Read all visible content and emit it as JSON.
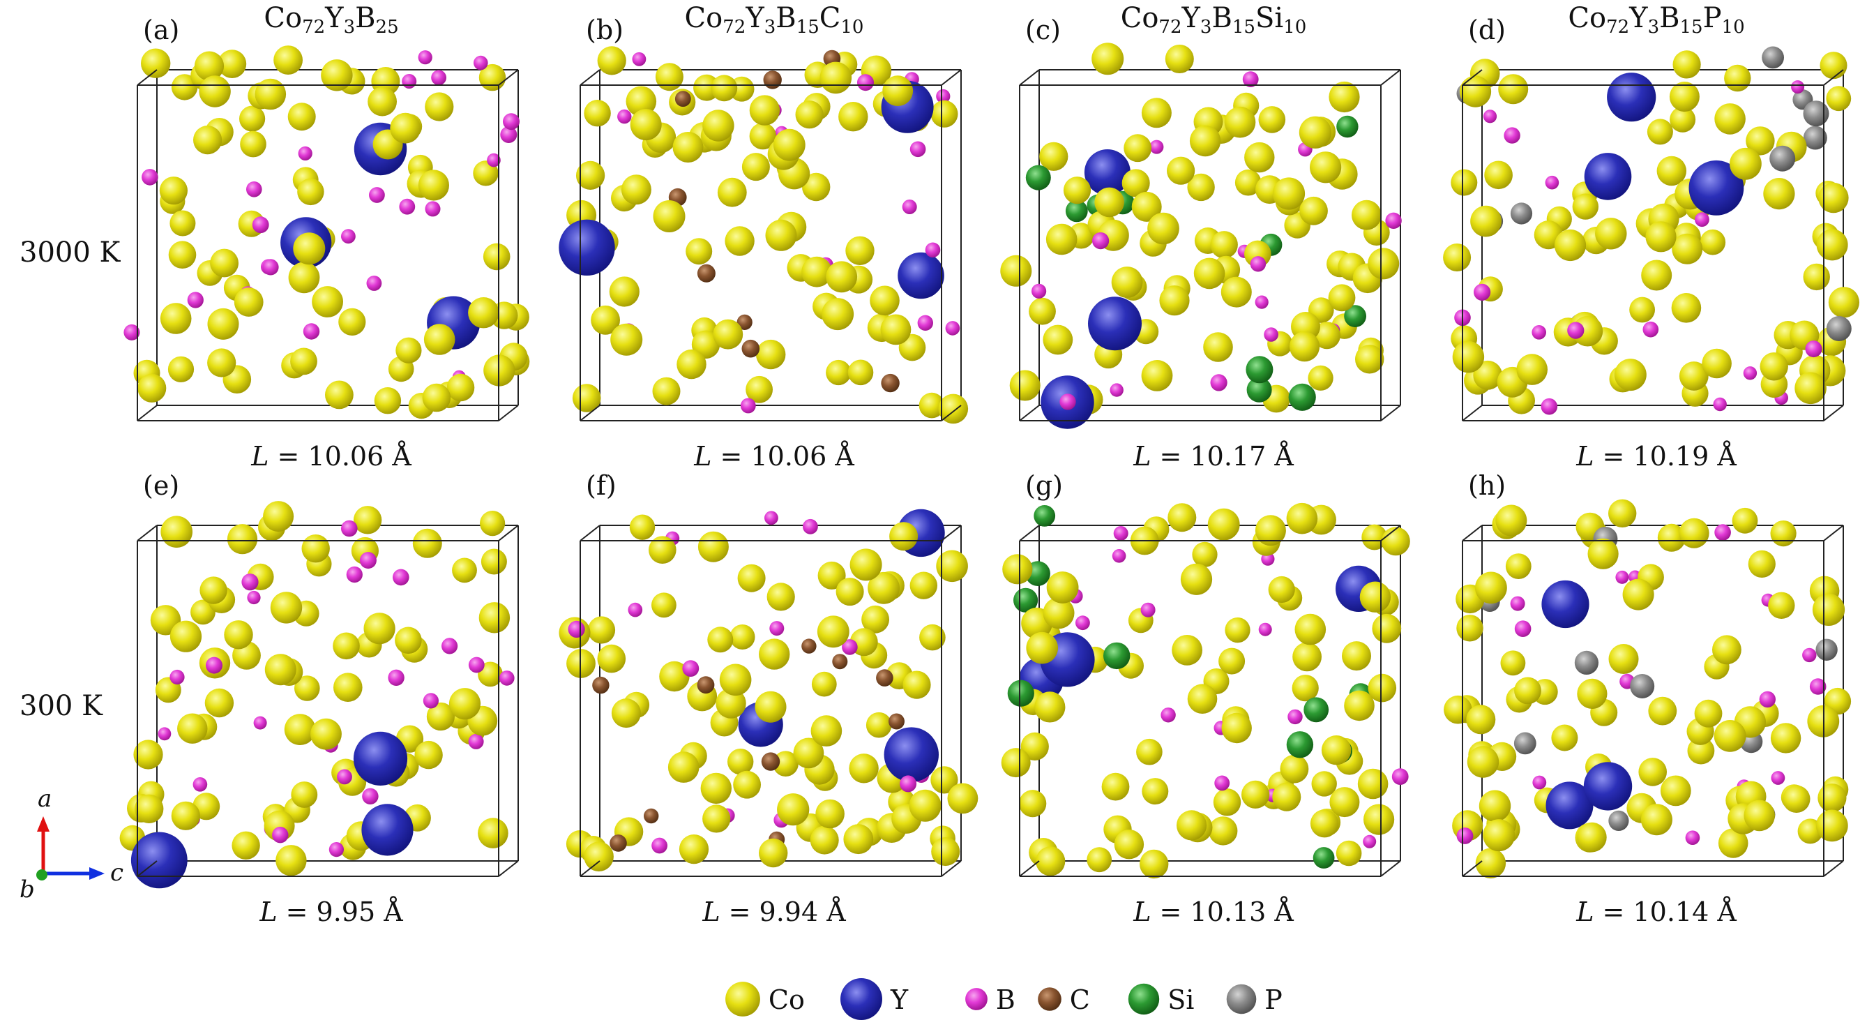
{
  "row_labels": [
    "3000 K",
    "300 K"
  ],
  "panels": [
    {
      "label": "(a)",
      "title": [
        {
          "t": "Co"
        },
        {
          "s": "72"
        },
        {
          "t": "Y"
        },
        {
          "s": "3"
        },
        {
          "t": "B"
        },
        {
          "s": "25"
        }
      ],
      "L_symbol": "L",
      "L_text": " = 10.06 Å"
    },
    {
      "label": "(b)",
      "title": [
        {
          "t": "Co"
        },
        {
          "s": "72"
        },
        {
          "t": "Y"
        },
        {
          "s": "3"
        },
        {
          "t": "B"
        },
        {
          "s": "15"
        },
        {
          "t": "C"
        },
        {
          "s": "10"
        }
      ],
      "L_symbol": "L",
      "L_text": " = 10.06 Å"
    },
    {
      "label": "(c)",
      "title": [
        {
          "t": "Co"
        },
        {
          "s": "72"
        },
        {
          "t": "Y"
        },
        {
          "s": "3"
        },
        {
          "t": "B"
        },
        {
          "s": "15"
        },
        {
          "t": "Si"
        },
        {
          "s": "10"
        }
      ],
      "L_symbol": "L",
      "L_text": " = 10.17 Å"
    },
    {
      "label": "(d)",
      "title": [
        {
          "t": "Co"
        },
        {
          "s": "72"
        },
        {
          "t": "Y"
        },
        {
          "s": "3"
        },
        {
          "t": "B"
        },
        {
          "s": "15"
        },
        {
          "t": "P"
        },
        {
          "s": "10"
        }
      ],
      "L_symbol": "L",
      "L_text": " = 10.19 Å"
    },
    {
      "label": "(e)",
      "title": [],
      "L_symbol": "L",
      "L_text": " = 9.95 Å"
    },
    {
      "label": "(f)",
      "title": [],
      "L_symbol": "L",
      "L_text": " = 9.94 Å"
    },
    {
      "label": "(g)",
      "title": [],
      "L_symbol": "L",
      "L_text": " = 10.13 Å"
    },
    {
      "label": "(h)",
      "title": [],
      "L_symbol": "L",
      "L_text": " = 10.14 Å"
    }
  ],
  "atom_counts": [
    {
      "Co": 72,
      "Y": 3,
      "B": 25,
      "C": 0,
      "Si": 0,
      "P": 0
    },
    {
      "Co": 72,
      "Y": 3,
      "B": 15,
      "C": 10,
      "Si": 0,
      "P": 0
    },
    {
      "Co": 72,
      "Y": 3,
      "B": 15,
      "C": 0,
      "Si": 10,
      "P": 0
    },
    {
      "Co": 72,
      "Y": 3,
      "B": 15,
      "C": 0,
      "Si": 0,
      "P": 10
    },
    {
      "Co": 72,
      "Y": 3,
      "B": 25,
      "C": 0,
      "Si": 0,
      "P": 0
    },
    {
      "Co": 72,
      "Y": 3,
      "B": 15,
      "C": 10,
      "Si": 0,
      "P": 0
    },
    {
      "Co": 72,
      "Y": 3,
      "B": 15,
      "C": 0,
      "Si": 10,
      "P": 0
    },
    {
      "Co": 72,
      "Y": 3,
      "B": 15,
      "C": 0,
      "Si": 0,
      "P": 10
    }
  ],
  "legend": [
    {
      "element": "Co",
      "color": "#e6e012"
    },
    {
      "element": "Y",
      "color": "#2b2fb8"
    },
    {
      "element": "B",
      "color": "#e23ad6"
    },
    {
      "element": "C",
      "color": "#8a5530"
    },
    {
      "element": "Si",
      "color": "#2c9a32"
    },
    {
      "element": "P",
      "color": "#8c8c8c"
    }
  ],
  "axes": {
    "a": "a",
    "b": "b",
    "c": "c",
    "a_color": "#e01010",
    "c_color": "#1030e0",
    "b_color": "#20a020"
  }
}
